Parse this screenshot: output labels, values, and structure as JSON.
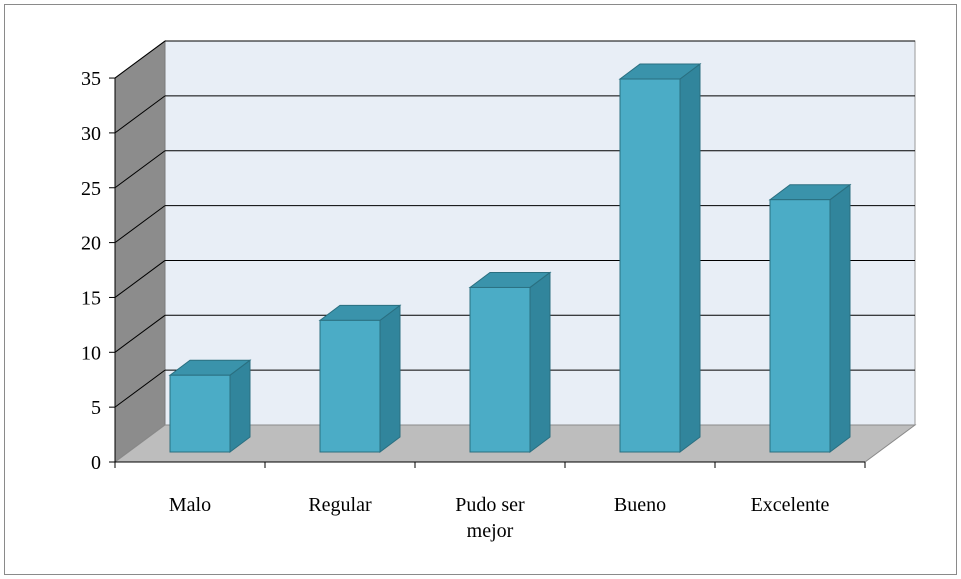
{
  "chart_data": {
    "type": "bar",
    "categories": [
      [
        "Malo"
      ],
      [
        "Regular"
      ],
      [
        "Pudo ser",
        "mejor"
      ],
      [
        "Bueno"
      ],
      [
        "Excelente"
      ]
    ],
    "values": [
      7,
      12,
      15,
      34,
      23
    ],
    "title": "",
    "xlabel": "",
    "ylabel": "",
    "ylim": [
      0,
      35
    ],
    "yticks": [
      0,
      5,
      10,
      15,
      20,
      25,
      30,
      35
    ],
    "grid": true,
    "three_d": true,
    "colors": {
      "bar_front": "#4bacc6",
      "bar_side": "#31859c",
      "bar_top": "#3a93ab",
      "bar_edge": "#2a6f80",
      "wall_back": "#e8eef6",
      "wall_side": "#8c8c8c",
      "floor": "#bdbdbd",
      "grid": "#000000"
    }
  }
}
